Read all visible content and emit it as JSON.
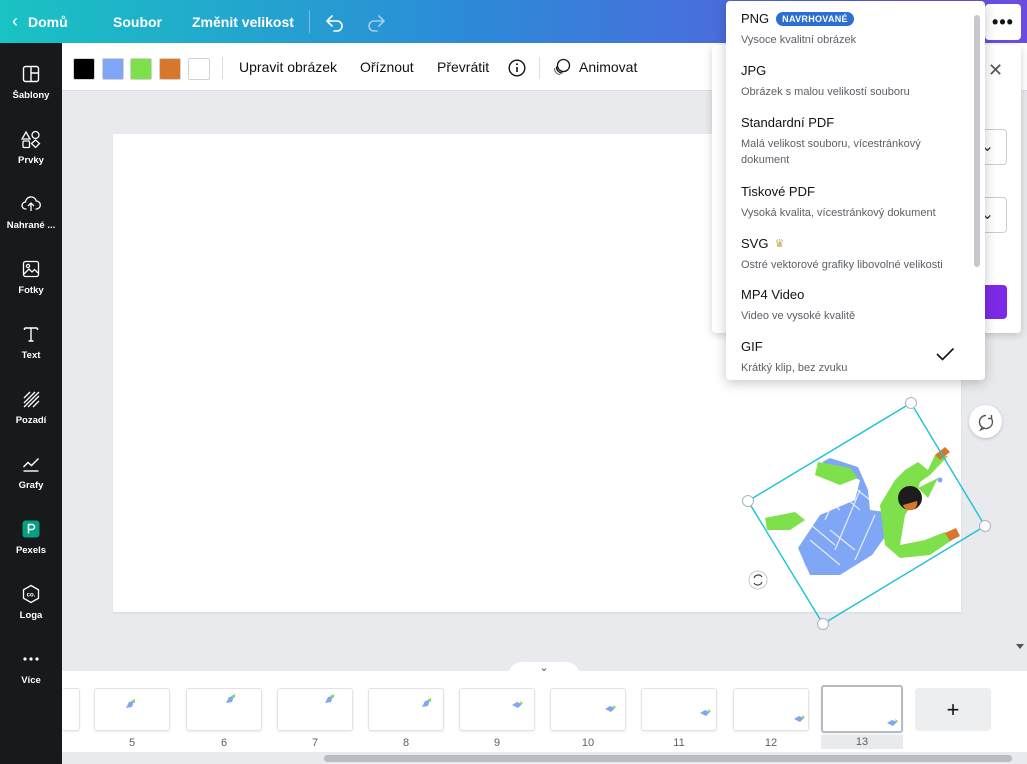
{
  "topbar": {
    "home_label": "Domů",
    "file_label": "Soubor",
    "resize_label": "Změnit velikost",
    "more_label": "•••"
  },
  "sidebar": {
    "items": [
      {
        "label": "Šablony",
        "icon": "templates-icon"
      },
      {
        "label": "Prvky",
        "icon": "elements-icon"
      },
      {
        "label": "Nahrané ...",
        "icon": "upload-icon"
      },
      {
        "label": "Fotky",
        "icon": "photos-icon"
      },
      {
        "label": "Text",
        "icon": "text-icon"
      },
      {
        "label": "Pozadí",
        "icon": "background-icon"
      },
      {
        "label": "Grafy",
        "icon": "charts-icon"
      },
      {
        "label": "Pexels",
        "icon": "pexels-icon"
      },
      {
        "label": "Loga",
        "icon": "logos-icon"
      },
      {
        "label": "Více",
        "icon": "more-icon"
      }
    ]
  },
  "toolbar": {
    "colors": [
      "#000000",
      "#7fa7f5",
      "#7ee04a",
      "#d8762c",
      "#ffffff"
    ],
    "edit_image": "Upravit obrázek",
    "crop": "Oříznout",
    "flip": "Převrátit",
    "animate": "Animovat"
  },
  "dropdown": {
    "items": [
      {
        "title": "PNG",
        "badge": "NAVRHOVANÉ",
        "desc": "Vysoce kvalitní obrázek"
      },
      {
        "title": "JPG",
        "desc": "Obrázek s malou velikostí souboru"
      },
      {
        "title": "Standardní PDF",
        "desc": "Malá velikost souboru, vícestránkový dokument"
      },
      {
        "title": "Tiskové PDF",
        "desc": "Vysoká kvalita, vícestránkový dokument"
      },
      {
        "title": "SVG",
        "desc": "Ostré vektorové grafiky libovolné velikosti",
        "premium": true
      },
      {
        "title": "MP4 Video",
        "desc": "Video ve vysoké kvalitě"
      },
      {
        "title": "GIF",
        "desc": "Krátký klip, bez zvuku",
        "selected": true
      }
    ]
  },
  "pages": {
    "labels": [
      "5",
      "6",
      "7",
      "8",
      "9",
      "10",
      "11",
      "12",
      "13"
    ],
    "active": "13",
    "add_label": "+"
  },
  "colors": {
    "accent": "#7d2ae8",
    "badge": "#2c6fd1",
    "selection": "#19c3d6"
  }
}
